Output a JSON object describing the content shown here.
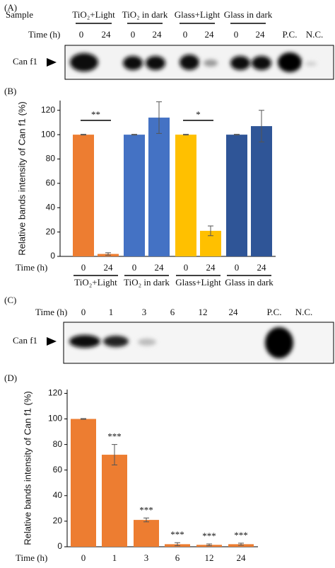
{
  "panel_a": {
    "label": "(A)",
    "sample_label": "Sample",
    "time_label": "Time (h)",
    "groups": [
      {
        "name": "TiO₂+Light",
        "times": [
          "0",
          "24"
        ]
      },
      {
        "name": "TiO₂ in dark",
        "times": [
          "0",
          "24"
        ]
      },
      {
        "name": "Glass+Light",
        "times": [
          "0",
          "24"
        ]
      },
      {
        "name": "Glass in dark",
        "times": [
          "0",
          "24"
        ]
      }
    ],
    "controls": [
      "P.C.",
      "N.C."
    ],
    "band_label": "Can f1"
  },
  "panel_c": {
    "label": "(C)",
    "time_label": "Time (h)",
    "times": [
      "0",
      "1",
      "3",
      "6",
      "12",
      "24"
    ],
    "controls": [
      "P.C.",
      "N.C."
    ],
    "band_label": "Can f1"
  },
  "chart_data": [
    {
      "type": "bar",
      "panel": "(B)",
      "ylabel": "Relative bands intensity of Can f1 (%)",
      "xlabel": "Time (h)",
      "categories": [
        "0",
        "24",
        "0",
        "24",
        "0",
        "24",
        "0",
        "24"
      ],
      "groups": [
        "TiO₂+Light",
        "TiO₂ in dark",
        "Glass+Light",
        "Glass in dark"
      ],
      "values": [
        100,
        2,
        100,
        114,
        100,
        21,
        100,
        107
      ],
      "errors": [
        0.3,
        1,
        0.3,
        13,
        0.3,
        4,
        0.3,
        13
      ],
      "colors": [
        "#ed7d31",
        "#ed7d31",
        "#4472c4",
        "#4472c4",
        "#ffc000",
        "#ffc000",
        "#2f5597",
        "#2f5597"
      ],
      "ylim": [
        0,
        128
      ],
      "yticks": [
        0,
        20,
        40,
        60,
        80,
        100,
        120
      ],
      "significance": [
        {
          "text": "**",
          "bars": [
            0,
            1
          ]
        },
        {
          "text": "*",
          "bars": [
            4,
            5
          ]
        }
      ]
    },
    {
      "type": "bar",
      "panel": "(D)",
      "ylabel": "Relative bands intensity of Can f1 (%)",
      "xlabel": "Time (h)",
      "categories": [
        "0",
        "1",
        "3",
        "6",
        "12",
        "24"
      ],
      "values": [
        100,
        72,
        21,
        2,
        1.5,
        2
      ],
      "errors": [
        0.3,
        8,
        1.5,
        1.2,
        0.7,
        0.8
      ],
      "color": "#ed7d31",
      "ylim": [
        0,
        123
      ],
      "yticks": [
        0,
        20,
        40,
        60,
        80,
        100,
        120
      ],
      "labels": [
        null,
        "***",
        "***",
        "***",
        "***",
        "***"
      ]
    }
  ]
}
